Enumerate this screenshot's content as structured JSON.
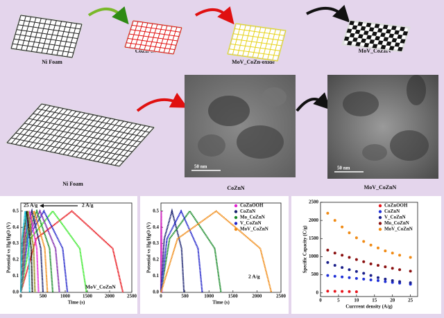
{
  "diagram": {
    "steps": [
      {
        "label": "Ni Foam"
      },
      {
        "label": "CoZn-oxide"
      },
      {
        "label": "MoV_CoZn-oxide"
      },
      {
        "label": "MoV_CoZnN"
      }
    ],
    "bottom_steps": [
      {
        "label": "Ni Foam"
      },
      {
        "label": "CoZnN",
        "scale_bar": "50 nm"
      },
      {
        "label": "MoV_CoZnN",
        "scale_bar": "50 nm"
      }
    ]
  },
  "chart_data": [
    {
      "type": "line",
      "xlabel": "Time (s)",
      "ylabel": "Potential vs Hg/HgO (V)",
      "xlim": [
        0,
        2500
      ],
      "xticks": [
        0,
        500,
        1000,
        1500,
        2000,
        2500
      ],
      "ylim": [
        0,
        0.55
      ],
      "yticks": [
        {
          "value": 0,
          "label": "0.0"
        },
        0.1,
        0.2,
        0.3,
        0.4,
        0.5
      ],
      "annotations": [
        "25 A/g",
        "2 A/g",
        "MoV_CoZnN"
      ],
      "series": [
        {
          "color": "#e8141b",
          "x": [
            0,
            345,
            1150,
            1553,
            2070,
            2300
          ],
          "values": [
            0,
            0.33,
            0.5,
            0.4,
            0.27,
            0
          ]
        },
        {
          "color": "#39e82a",
          "x": [
            0,
            216,
            720,
            986,
            1328,
            1480
          ],
          "values": [
            0,
            0.33,
            0.5,
            0.4,
            0.27,
            0
          ]
        },
        {
          "color": "#1f22c9",
          "x": [
            0,
            156,
            520,
            706,
            944,
            1050
          ],
          "values": [
            0,
            0.33,
            0.5,
            0.4,
            0.27,
            0
          ]
        },
        {
          "color": "#7a1fa8",
          "x": [
            0,
            129,
            430,
            584,
            782,
            870
          ],
          "values": [
            0,
            0.33,
            0.5,
            0.4,
            0.27,
            0
          ]
        },
        {
          "color": "#1a8a2a",
          "x": [
            0,
            108,
            360,
            486,
            648,
            720
          ],
          "values": [
            0,
            0.33,
            0.5,
            0.4,
            0.27,
            0
          ]
        },
        {
          "color": "#f08a14",
          "x": [
            0,
            90,
            300,
            405,
            540,
            600
          ],
          "values": [
            0,
            0.33,
            0.5,
            0.4,
            0.27,
            0
          ]
        },
        {
          "color": "#18206e",
          "x": [
            0,
            75,
            250,
            338,
            450,
            500
          ],
          "values": [
            0,
            0.33,
            0.5,
            0.4,
            0.27,
            0
          ]
        },
        {
          "color": "#e21fd0",
          "x": [
            0,
            60,
            200,
            270,
            360,
            400
          ],
          "values": [
            0,
            0.33,
            0.5,
            0.4,
            0.27,
            0
          ]
        },
        {
          "color": "#8a8a12",
          "x": [
            0,
            48,
            160,
            216,
            288,
            320
          ],
          "values": [
            0,
            0.33,
            0.5,
            0.4,
            0.27,
            0
          ]
        },
        {
          "color": "#111111",
          "x": [
            0,
            39,
            130,
            176,
            234,
            260
          ],
          "values": [
            0,
            0.33,
            0.5,
            0.4,
            0.27,
            0
          ]
        },
        {
          "color": "#17c2d6",
          "x": [
            0,
            30,
            100,
            135,
            180,
            200
          ],
          "values": [
            0,
            0.33,
            0.5,
            0.4,
            0.27,
            0
          ]
        }
      ]
    },
    {
      "type": "line",
      "xlabel": "Time (s)",
      "ylabel": "Potential vs Hg/HgO (V)",
      "xlim": [
        0,
        2500
      ],
      "xticks": [
        0,
        500,
        1000,
        1500,
        2000,
        2500
      ],
      "ylim": [
        0,
        0.55
      ],
      "yticks": [
        {
          "value": 0,
          "label": "0.0"
        },
        0.1,
        0.2,
        0.3,
        0.4,
        0.5
      ],
      "legend": "upper right",
      "annotations": [
        "2 A/g"
      ],
      "series": [
        {
          "name": "CoZnOOH",
          "color": "#e21fd0",
          "x": [
            0,
            2,
            8,
            11,
            17,
            20
          ],
          "values": [
            0,
            0.33,
            0.5,
            0.4,
            0.27,
            0
          ]
        },
        {
          "name": "CoZnN",
          "color": "#18206e",
          "x": [
            0,
            69,
            230,
            318,
            430,
            480
          ],
          "values": [
            0,
            0.33,
            0.5,
            0.4,
            0.27,
            0
          ]
        },
        {
          "name": "Mo_CoZnN",
          "color": "#1a8a2a",
          "x": [
            0,
            180,
            600,
            828,
            1120,
            1250
          ],
          "values": [
            0,
            0.33,
            0.5,
            0.4,
            0.27,
            0
          ]
        },
        {
          "name": "V_CoZnN",
          "color": "#1f22c9",
          "x": [
            0,
            126,
            420,
            574,
            772,
            860
          ],
          "values": [
            0,
            0.33,
            0.5,
            0.4,
            0.27,
            0
          ]
        },
        {
          "name": "MoV_CoZnN",
          "color": "#f08a14",
          "x": [
            0,
            345,
            1150,
            1553,
            2070,
            2300
          ],
          "values": [
            0,
            0.33,
            0.5,
            0.4,
            0.27,
            0
          ]
        }
      ]
    },
    {
      "type": "scatter",
      "xlabel": "Currrent density (A/g)",
      "ylabel": "Specific Capacity (C/g)",
      "xlim": [
        0,
        27
      ],
      "xticks": [
        0,
        5,
        10,
        15,
        20,
        25
      ],
      "ylim": [
        -100,
        2500
      ],
      "yticks": [
        0,
        500,
        1000,
        1500,
        2000,
        2500
      ],
      "legend": "upper right",
      "x": [
        2,
        4,
        6,
        8,
        10,
        12,
        14,
        16,
        18,
        20,
        22,
        25
      ],
      "series": [
        {
          "name": "CoZnOOH",
          "color": "#e8141b",
          "values": [
            48,
            44,
            40,
            36,
            32,
            null,
            null,
            null,
            null,
            null,
            null,
            null
          ]
        },
        {
          "name": "CoZnN",
          "color": "#2030d8",
          "values": [
            480,
            460,
            440,
            420,
            400,
            380,
            360,
            340,
            310,
            290,
            270,
            240
          ]
        },
        {
          "name": "V_CoZnN",
          "color": "#1a1f8a",
          "values": [
            840,
            760,
            700,
            640,
            590,
            540,
            480,
            420,
            380,
            340,
            310,
            280
          ]
        },
        {
          "name": "Mo_CoZnN",
          "color": "#8a1010",
          "values": [
            1180,
            1100,
            1040,
            980,
            920,
            860,
            800,
            760,
            720,
            680,
            640,
            600
          ]
        },
        {
          "name": "MoV_CoZnN",
          "color": "#f08a14",
          "values": [
            2200,
            2000,
            1820,
            1660,
            1520,
            1420,
            1320,
            1240,
            1160,
            1100,
            1040,
            980
          ]
        }
      ]
    }
  ]
}
